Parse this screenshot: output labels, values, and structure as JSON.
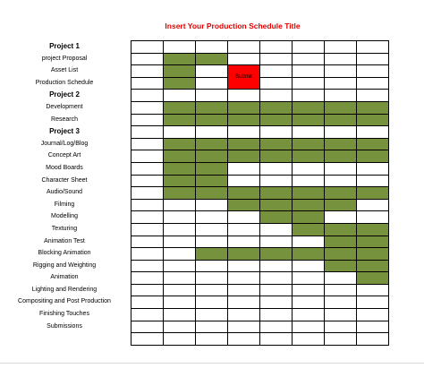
{
  "title": "Insert Your Production Schedule Title",
  "rows": [
    {
      "label": "Project 1",
      "header": true
    },
    {
      "label": "project Proposal"
    },
    {
      "label": "Asset List"
    },
    {
      "label": "Production Schedule"
    },
    {
      "label": "Project 2",
      "header": true
    },
    {
      "label": "Development"
    },
    {
      "label": "Research"
    },
    {
      "label": "Project 3",
      "header": true
    },
    {
      "label": "Journal/Log/Blog"
    },
    {
      "label": "Concept Art"
    },
    {
      "label": "Mood Boards"
    },
    {
      "label": "Character Sheet"
    },
    {
      "label": "Audio/Sound"
    },
    {
      "label": "Filming"
    },
    {
      "label": "Modelling"
    },
    {
      "label": "Texturing"
    },
    {
      "label": "Animation Test"
    },
    {
      "label": "Blocking Animation"
    },
    {
      "label": "Rigging and Weighting"
    },
    {
      "label": "Animation"
    },
    {
      "label": "Lighting and Rendering"
    },
    {
      "label": "Compositing and Post Production"
    },
    {
      "label": "Finishing Touches"
    },
    {
      "label": "Submissions"
    },
    {
      "label": ""
    }
  ],
  "cells": [
    "........",
    ".gg.....",
    ".g.R....",
    ".g.R....",
    "........",
    ".ggggggg",
    ".ggggggg",
    "........",
    ".ggggggg",
    ".ggggggg",
    ".gg.....",
    ".gg.....",
    ".ggggggg",
    "...gggg.",
    "....gg..",
    ".....ggg",
    "......gg",
    "..gggggg",
    "......gg",
    ".......g",
    "........",
    "........",
    "........",
    "........",
    "........"
  ],
  "submit_label": "Submit",
  "colors": {
    "bar": "#76923c",
    "submit": "#ff0000",
    "title": "#e00000"
  }
}
